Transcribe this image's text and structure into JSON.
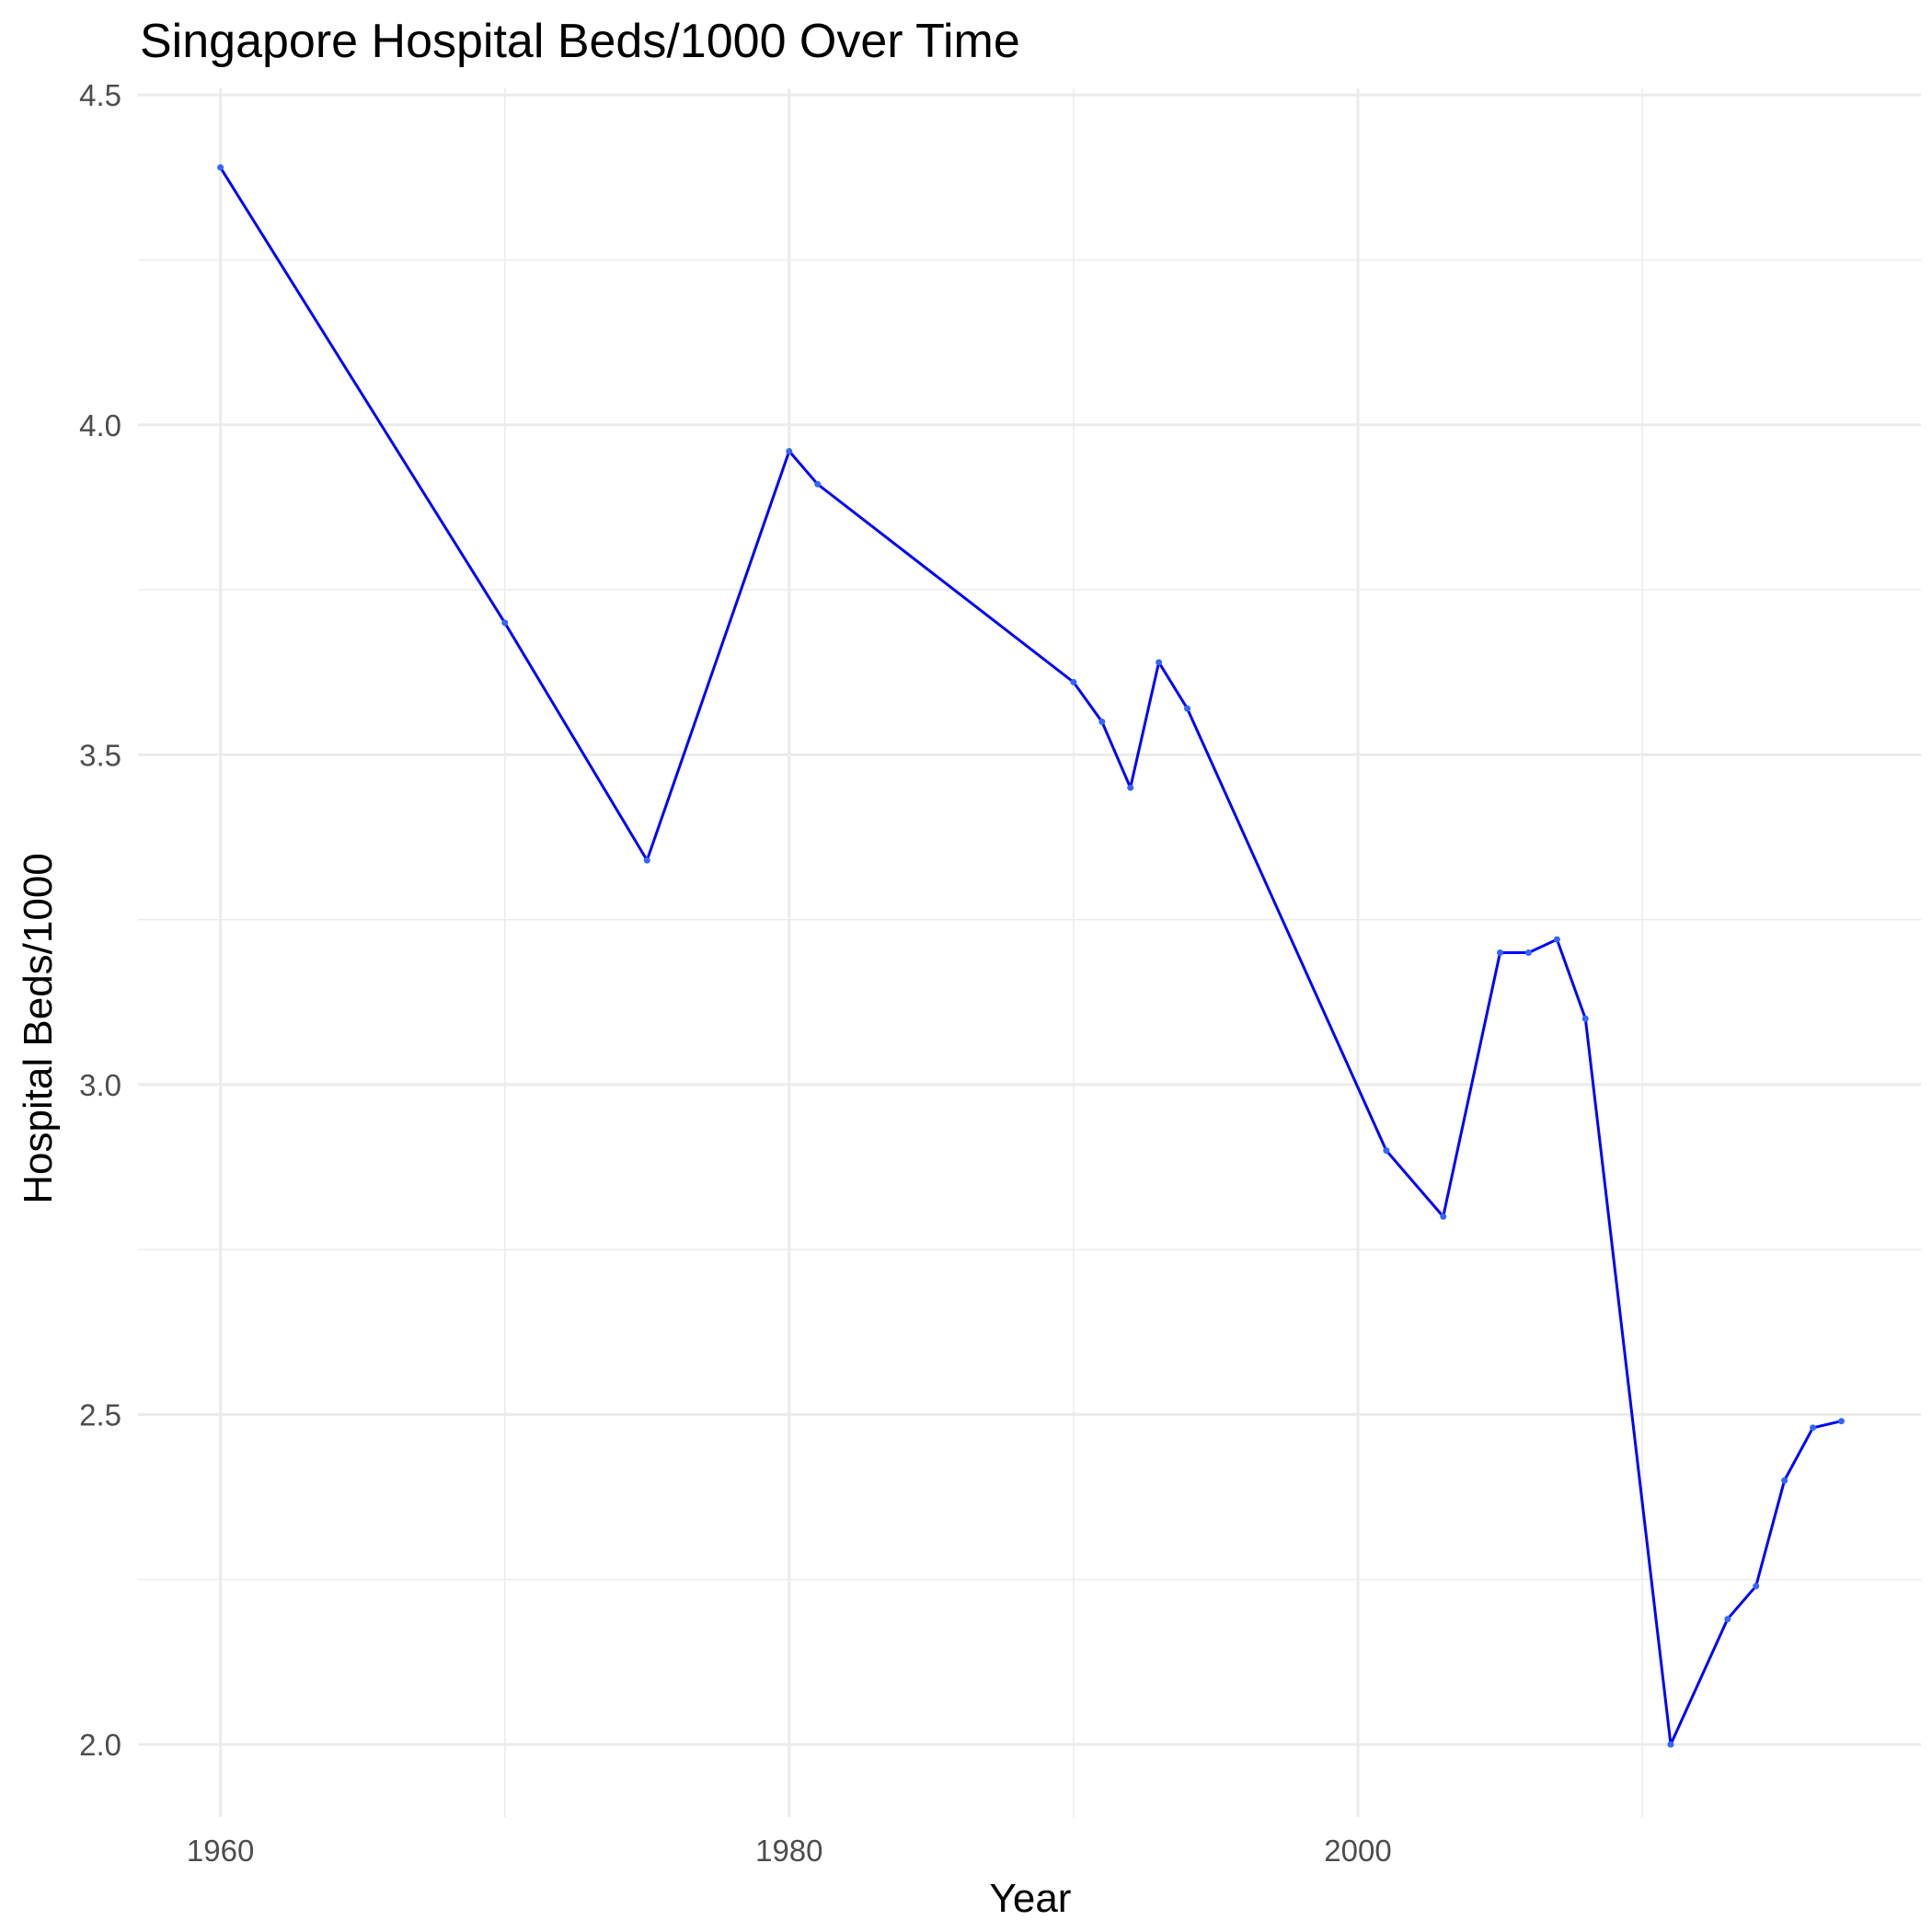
{
  "colors": {
    "line": "#0000ff",
    "point": "#3366ff",
    "grid": "#ebebeb",
    "tick_text": "#4d4d4d",
    "text": "#000000",
    "background": "#ffffff"
  },
  "chart_data": {
    "type": "line",
    "title": "Singapore Hospital Beds/1000 Over Time",
    "xlabel": "Year",
    "ylabel": "Hospital Beds/1000",
    "xlim": [
      1957.1,
      2019.8
    ],
    "ylim": [
      1.89,
      4.51
    ],
    "x_ticks": [
      1960,
      1980,
      2000
    ],
    "x_tick_labels": [
      "1960",
      "1980",
      "2000"
    ],
    "y_ticks": [
      2.0,
      2.5,
      3.0,
      3.5,
      4.0,
      4.5
    ],
    "y_tick_labels": [
      "2.0",
      "2.5",
      "3.0",
      "3.5",
      "4.0",
      "4.5"
    ],
    "grid": true,
    "legend": "none",
    "series": [
      {
        "x": [
          1960,
          1970,
          1975,
          1980,
          1981,
          1990,
          1991,
          1992,
          1993,
          1994,
          2001,
          2003,
          2005,
          2006,
          2007,
          2008,
          2011,
          2013,
          2014,
          2015,
          2016,
          2017
        ],
        "y": [
          4.39,
          3.7,
          3.34,
          3.96,
          3.91,
          3.61,
          3.55,
          3.45,
          3.64,
          3.57,
          2.9,
          2.8,
          3.2,
          3.2,
          3.22,
          3.1,
          2.0,
          2.19,
          2.24,
          2.4,
          2.48,
          2.49
        ]
      }
    ]
  }
}
